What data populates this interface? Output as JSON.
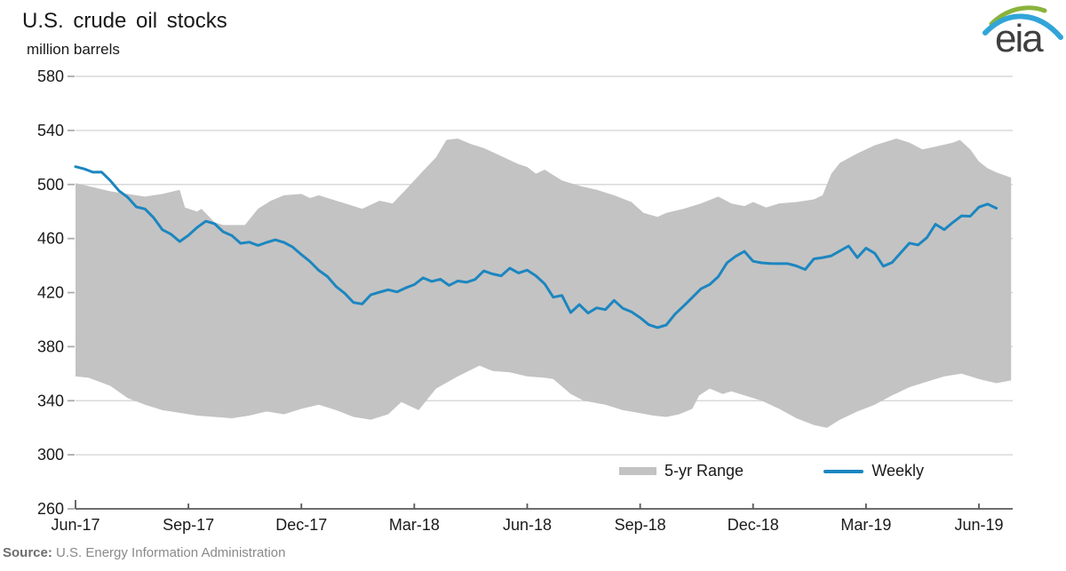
{
  "chart_data": {
    "type": "line",
    "title": "U.S. crude oil stocks",
    "units_label": "million barrels",
    "ylabel": "million barrels",
    "ylim": [
      260,
      580
    ],
    "y_ticks": [
      580,
      540,
      500,
      460,
      420,
      380,
      340,
      300,
      260
    ],
    "x_tick_labels": [
      "Jun-17",
      "Sep-17",
      "Dec-17",
      "Mar-18",
      "Jun-18",
      "Sep-18",
      "Dec-18",
      "Mar-19",
      "Jun-19"
    ],
    "x_tick_weeks": [
      0,
      13,
      26,
      39,
      52,
      65,
      78,
      91,
      104
    ],
    "layout_hints": {
      "grid": "horizontal",
      "legend_position": "bottom-right"
    },
    "colors": {
      "line": "#1c86c0",
      "band": "#c3c3c3",
      "grid": "#d9d9d9",
      "axis": "#595959",
      "text": "#1a1a1a",
      "tick": "#ababab"
    },
    "legend": {
      "range_label": "5-yr Range",
      "weekly_label": "Weekly"
    },
    "weekly": {
      "name": "Weekly",
      "start_label": "Jun-17",
      "frequency_weeks": 1,
      "values": [
        513.2,
        511.5,
        509.1,
        509.2,
        502.9,
        495.4,
        490.6,
        483.4,
        481.9,
        475.4,
        466.5,
        463.2,
        457.8,
        462.4,
        468.2,
        472.8,
        471.0,
        465.0,
        462.2,
        456.5,
        457.3,
        454.9,
        457.1,
        459.0,
        457.1,
        453.7,
        448.1,
        443.0,
        436.5,
        431.9,
        424.5,
        419.5,
        412.7,
        411.6,
        418.4,
        420.3,
        422.1,
        420.5,
        423.5,
        425.9,
        430.9,
        428.3,
        429.9,
        425.3,
        428.6,
        427.6,
        429.7,
        436.0,
        433.8,
        432.4,
        438.1,
        434.5,
        436.6,
        432.4,
        426.5,
        416.6,
        417.9,
        405.2,
        411.1,
        404.9,
        408.7,
        407.4,
        414.2,
        408.4,
        405.8,
        401.5,
        396.2,
        394.1,
        396.0,
        404.0,
        410.0,
        416.4,
        422.8,
        426.0,
        431.8,
        442.1,
        446.9,
        450.5,
        443.2,
        442.0,
        441.5,
        441.4,
        441.4,
        439.7,
        437.1,
        445.0,
        445.9,
        447.2,
        450.8,
        454.5,
        445.9,
        452.9,
        449.1,
        439.5,
        442.3,
        449.5,
        456.6,
        455.2,
        460.6,
        470.6,
        466.6,
        472.0,
        476.8,
        476.5,
        483.3,
        485.5,
        482.4
      ]
    },
    "band": {
      "name": "5-yr Range",
      "top": {
        "weeks": [
          0,
          2,
          4,
          6,
          8,
          10,
          12,
          12.6,
          14,
          14.5,
          16,
          17,
          19.5,
          21,
          22.5,
          24,
          26,
          27,
          28,
          30,
          33,
          35,
          36.5,
          38,
          40,
          41.5,
          42.7,
          44,
          45.5,
          47,
          49,
          51,
          52,
          53,
          54,
          56,
          58,
          60,
          62,
          64,
          65.4,
          67,
          68,
          70,
          72,
          74,
          75.5,
          77,
          78,
          79.5,
          81,
          83,
          85,
          86,
          87,
          88,
          90,
          92,
          94.5,
          96,
          97.5,
          99,
          101,
          101.8,
          103,
          104,
          105,
          106,
          107.7
        ],
        "values": [
          501,
          498,
          495,
          493,
          491,
          493,
          496,
          483,
          480,
          482,
          472,
          470,
          470,
          482,
          488,
          492,
          493,
          490,
          492,
          488,
          482,
          488,
          486,
          496,
          510,
          520,
          533,
          534,
          530,
          527,
          521,
          515,
          513,
          508,
          511,
          503,
          499,
          496,
          492,
          487,
          479,
          476,
          479,
          482,
          486,
          491,
          486,
          484,
          487,
          483,
          486,
          487,
          489,
          492,
          508,
          516,
          523,
          529,
          534,
          531,
          526,
          528,
          531,
          533,
          526,
          517,
          512,
          509,
          505
        ]
      },
      "bottom": {
        "weeks": [
          0,
          1.5,
          4,
          6,
          8,
          10,
          12,
          14,
          16,
          18,
          20,
          22,
          24,
          26,
          28,
          30,
          32,
          34,
          36,
          37.5,
          39.5,
          41.5,
          44,
          46.5,
          48,
          50,
          52,
          54,
          55,
          57,
          58.5,
          61,
          63,
          64.8,
          66.5,
          68,
          69.5,
          71,
          71.8,
          73,
          74.5,
          75.5,
          77,
          79,
          81,
          83,
          85,
          86.5,
          88,
          90,
          92,
          94,
          96,
          98,
          100,
          102,
          104,
          106,
          107.7
        ],
        "values": [
          358,
          357,
          351,
          342,
          337,
          333,
          331,
          329,
          328,
          327,
          329,
          332,
          330,
          334,
          337,
          333,
          328,
          326,
          330,
          339,
          333,
          349,
          358,
          366,
          362,
          361,
          358,
          357,
          356,
          345,
          340,
          337,
          333,
          331,
          329,
          328,
          330,
          334,
          344,
          349,
          345,
          347,
          344,
          340,
          334,
          327,
          322,
          320,
          326,
          332,
          337,
          344,
          350,
          354,
          358,
          360,
          356,
          353,
          355
        ]
      }
    }
  },
  "source": {
    "label": "Source:",
    "text": " U.S. Energy Information Administration"
  },
  "logo": {
    "text": "eia",
    "green": "#8ab33c",
    "blue": "#31a5d8",
    "text_color": "#3f3f3f"
  }
}
